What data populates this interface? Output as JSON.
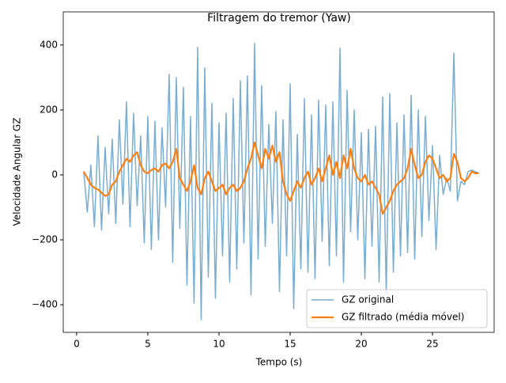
{
  "chart_data": {
    "type": "line",
    "title": "Filtragem do tremor (Yaw)",
    "x_label": "Tempo (s)",
    "y_label": "Velocidade Angular GZ",
    "xlim": [
      -0.94,
      29.33
    ],
    "ylim": [
      -485,
      502
    ],
    "xticks": [
      0,
      5,
      10,
      15,
      20,
      25
    ],
    "yticks": [
      {
        "value": -400,
        "label": "−400"
      },
      {
        "value": -200,
        "label": "−200"
      },
      0,
      200,
      400
    ],
    "grid": false,
    "legend": "lower right",
    "x": [
      0.5,
      0.75,
      1,
      1.25,
      1.5,
      1.75,
      2,
      2.25,
      2.5,
      2.75,
      3,
      3.25,
      3.5,
      3.75,
      4,
      4.25,
      4.5,
      4.75,
      5,
      5.25,
      5.5,
      5.75,
      6,
      6.25,
      6.5,
      6.75,
      7,
      7.25,
      7.5,
      7.75,
      8,
      8.25,
      8.5,
      8.75,
      9,
      9.25,
      9.5,
      9.75,
      10,
      10.25,
      10.5,
      10.75,
      11,
      11.25,
      11.5,
      11.75,
      12,
      12.25,
      12.5,
      12.75,
      13,
      13.25,
      13.5,
      13.75,
      14,
      14.25,
      14.5,
      14.75,
      15,
      15.25,
      15.5,
      15.75,
      16,
      16.25,
      16.5,
      16.75,
      17,
      17.25,
      17.5,
      17.75,
      18,
      18.25,
      18.5,
      18.75,
      19,
      19.25,
      19.5,
      19.75,
      20,
      20.25,
      20.5,
      20.75,
      21,
      21.25,
      21.5,
      21.75,
      22,
      22.25,
      22.5,
      22.75,
      23,
      23.25,
      23.5,
      23.75,
      24,
      24.25,
      24.5,
      24.75,
      25,
      25.25,
      25.5,
      25.75,
      26,
      26.25,
      26.5,
      26.75,
      27,
      27.25,
      27.5,
      27.75,
      28,
      28.25
    ],
    "series": [
      {
        "name": "GZ original",
        "color": "#1f77b4",
        "alpha": 0.6,
        "width": 1.5,
        "values": [
          10,
          -115,
          30,
          -160,
          120,
          -170,
          85,
          -120,
          110,
          -150,
          170,
          -90,
          225,
          -160,
          190,
          -95,
          120,
          -210,
          180,
          -230,
          165,
          -200,
          145,
          -100,
          310,
          -270,
          300,
          -165,
          270,
          -340,
          180,
          -395,
          393,
          -447,
          330,
          -315,
          220,
          -380,
          160,
          -250,
          190,
          -330,
          235,
          -290,
          290,
          -210,
          305,
          -370,
          405,
          -260,
          275,
          -220,
          155,
          -150,
          195,
          -360,
          170,
          -250,
          280,
          -412,
          125,
          -290,
          235,
          -300,
          185,
          -320,
          230,
          -205,
          215,
          -280,
          225,
          -250,
          390,
          -330,
          260,
          -175,
          200,
          -200,
          130,
          -320,
          140,
          -220,
          150,
          -330,
          240,
          -365,
          250,
          -300,
          160,
          -250,
          185,
          -240,
          245,
          -260,
          200,
          -190,
          180,
          -140,
          90,
          -230,
          60,
          -60,
          -10,
          -50,
          375,
          -80,
          -20,
          -30,
          10,
          15,
          10,
          5
        ]
      },
      {
        "name": "GZ filtrado (média móvel)",
        "color": "#ff7f0e",
        "alpha": 1,
        "width": 2.2,
        "values": [
          10,
          -10,
          -30,
          -40,
          -45,
          -55,
          -65,
          -60,
          -30,
          -20,
          10,
          30,
          50,
          40,
          60,
          70,
          30,
          10,
          5,
          15,
          20,
          10,
          30,
          35,
          20,
          40,
          80,
          -10,
          -30,
          -50,
          -20,
          30,
          -40,
          -60,
          -10,
          10,
          -20,
          -50,
          -40,
          -30,
          -60,
          -40,
          -30,
          -50,
          -40,
          -20,
          20,
          50,
          100,
          60,
          20,
          80,
          50,
          90,
          40,
          70,
          -20,
          -60,
          -80,
          -50,
          -20,
          -40,
          -10,
          10,
          -30,
          -10,
          20,
          -20,
          20,
          60,
          0,
          40,
          -10,
          60,
          20,
          80,
          20,
          -10,
          -20,
          0,
          -30,
          -20,
          -40,
          -60,
          -120,
          -100,
          -80,
          -50,
          -30,
          -20,
          -10,
          20,
          80,
          30,
          -10,
          0,
          40,
          60,
          50,
          20,
          -10,
          0,
          -20,
          -10,
          65,
          40,
          -10,
          -20,
          -10,
          10,
          5,
          5
        ]
      }
    ]
  }
}
